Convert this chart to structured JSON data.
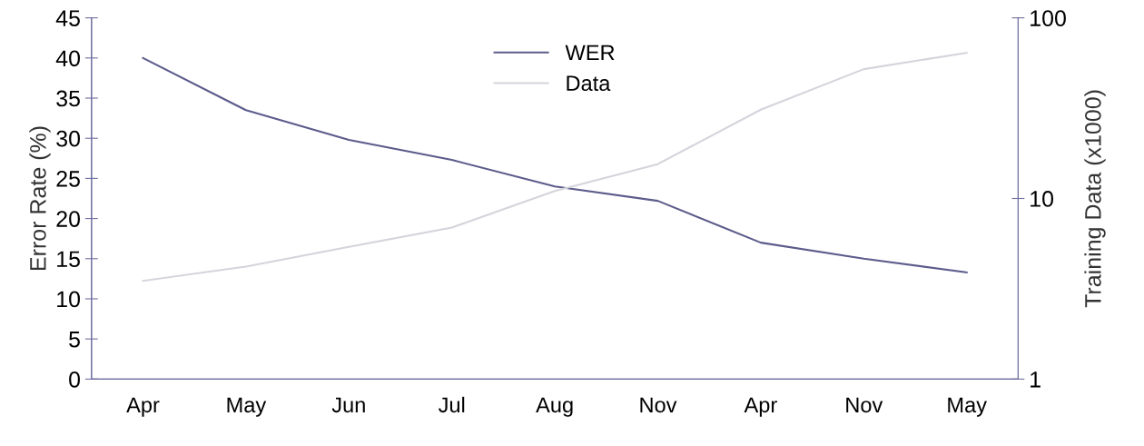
{
  "chart_data": {
    "type": "line",
    "xlabel": null,
    "ylabel": "Error Rate (%)",
    "y2label": "Training Data (x1000)",
    "categories": [
      "Apr",
      "May",
      "Jun",
      "Jul",
      "Aug",
      "Nov",
      "Apr",
      "Nov",
      "May"
    ],
    "series": [
      {
        "name": "WER",
        "color": "#5c5c8c",
        "values": [
          40,
          33.5,
          29.8,
          27.3,
          24,
          22.2,
          17,
          15,
          13.3
        ]
      },
      {
        "name": "Data",
        "color": "#d4d4dc",
        "axis": "y2",
        "values": [
          3.5,
          4.2,
          5.4,
          6.9,
          11,
          15.5,
          31,
          52,
          64
        ]
      }
    ],
    "ylim": [
      0,
      45
    ],
    "yticks": [
      0,
      5,
      10,
      15,
      20,
      25,
      30,
      35,
      40,
      45
    ],
    "y2lim": [
      1,
      100
    ],
    "y2ticks": [
      1,
      10,
      100
    ],
    "log": "y2",
    "grid": false,
    "legend": "top",
    "marker": "none",
    "line_style": "solid"
  }
}
